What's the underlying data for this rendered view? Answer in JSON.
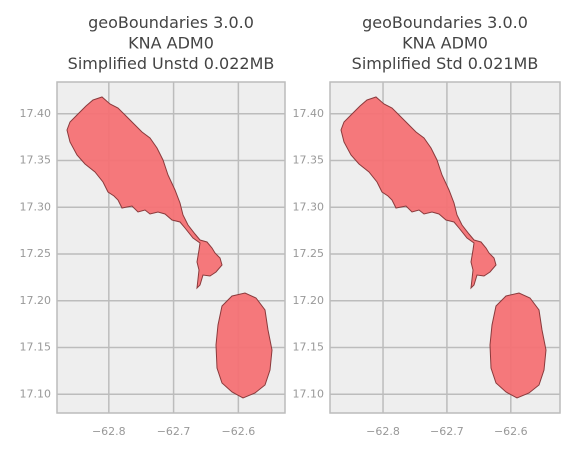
{
  "chart_data": [
    {
      "type": "map",
      "title": [
        "geoBoundaries 3.0.0",
        "KNA ADM0",
        "Simplified Unstd 0.022MB"
      ],
      "color": "#f47174",
      "grid": true,
      "xlim": [
        -62.88,
        -62.528
      ],
      "ylim": [
        17.08,
        17.434
      ],
      "xticks": [
        {
          "value": -62.8,
          "label": "−62.8"
        },
        {
          "value": -62.7,
          "label": "−62.7"
        },
        {
          "value": -62.6,
          "label": "−62.6"
        }
      ],
      "yticks": [
        {
          "value": 17.1,
          "label": "17.10"
        },
        17.15,
        {
          "value": 17.2,
          "label": "17.20"
        },
        17.25,
        {
          "value": 17.3,
          "label": "17.30"
        },
        17.35,
        {
          "value": 17.4,
          "label": "17.40"
        }
      ]
    },
    {
      "type": "map",
      "title": [
        "geoBoundaries 3.0.0",
        "KNA ADM0",
        "Simplified Std 0.021MB"
      ],
      "color": "#f47174",
      "grid": true,
      "xlim": [
        -62.883,
        -62.523
      ],
      "ylim": [
        17.08,
        17.434
      ],
      "xticks": [
        {
          "value": -62.8,
          "label": "−62.8"
        },
        {
          "value": -62.7,
          "label": "−62.7"
        },
        {
          "value": -62.6,
          "label": "−62.6"
        }
      ],
      "yticks": [
        {
          "value": 17.1,
          "label": "17.10"
        },
        17.15,
        {
          "value": 17.2,
          "label": "17.20"
        },
        17.25,
        {
          "value": 17.3,
          "label": "17.30"
        },
        17.35,
        {
          "value": 17.4,
          "label": "17.40"
        }
      ]
    }
  ]
}
